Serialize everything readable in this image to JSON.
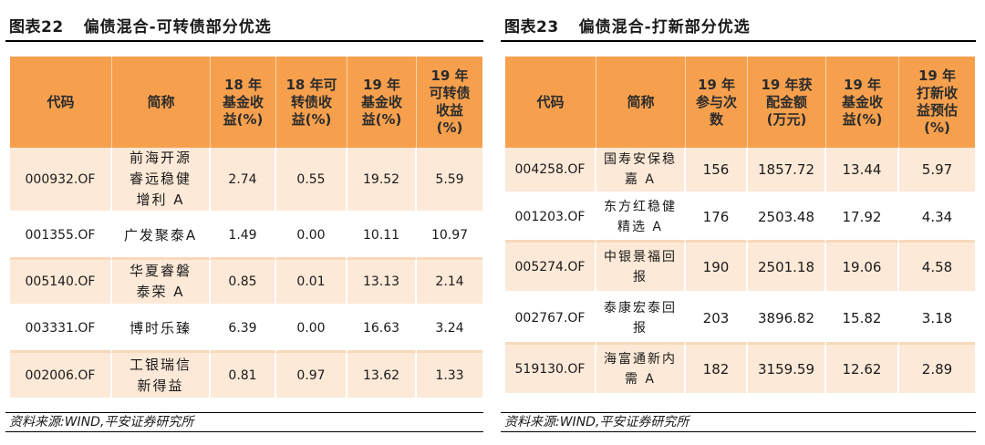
{
  "left": {
    "title_num": "图表22",
    "title_text": "偏债混合-可转债部分优选",
    "headers": [
      "代码",
      "简称",
      "18 年\n基金收\n益(%)",
      "18 年可\n转债收\n益(%)",
      "19 年\n基金收\n益(%)",
      "19 年\n可转债\n收益\n(%)"
    ],
    "rows": [
      [
        "000932.OF",
        "前海开源\n睿远稳健\n增利 A",
        "2.74",
        "0.55",
        "19.52",
        "5.59"
      ],
      [
        "001355.OF",
        "广发聚泰A",
        "1.49",
        "0.00",
        "10.11",
        "10.97"
      ],
      [
        "005140.OF",
        "华夏睿磐\n泰荣 A",
        "0.85",
        "0.01",
        "13.13",
        "2.14"
      ],
      [
        "003331.OF",
        "博时乐臻",
        "6.39",
        "0.00",
        "16.63",
        "3.24"
      ],
      [
        "002006.OF",
        "工银瑞信\n新得益",
        "0.81",
        "0.97",
        "13.62",
        "1.33"
      ]
    ],
    "source": "资料来源:WIND,平安证券研究所"
  },
  "right": {
    "title_num": "图表23",
    "title_text": "偏债混合-打新部分优选",
    "headers": [
      "代码",
      "简称",
      "19 年\n参与次\n数",
      "19 年获\n配金额\n(万元)",
      "19 年\n基金收\n益(%)",
      "19 年\n打新收\n益预估\n(%)"
    ],
    "rows": [
      [
        "004258.OF",
        "国寿安保稳\n嘉 A",
        "156",
        "1857.72",
        "13.44",
        "5.97"
      ],
      [
        "001203.OF",
        "东方红稳健\n精选 A",
        "176",
        "2503.48",
        "17.92",
        "4.34"
      ],
      [
        "005274.OF",
        "中银景福回\n报",
        "190",
        "2501.18",
        "19.06",
        "4.58"
      ],
      [
        "002767.OF",
        "泰康宏泰回\n报",
        "203",
        "3896.82",
        "15.82",
        "3.18"
      ],
      [
        "519130.OF",
        "海富通新内\n需 A",
        "182",
        "3159.59",
        "12.62",
        "2.89"
      ]
    ],
    "source": "资料来源:WIND,平安证券研究所"
  }
}
